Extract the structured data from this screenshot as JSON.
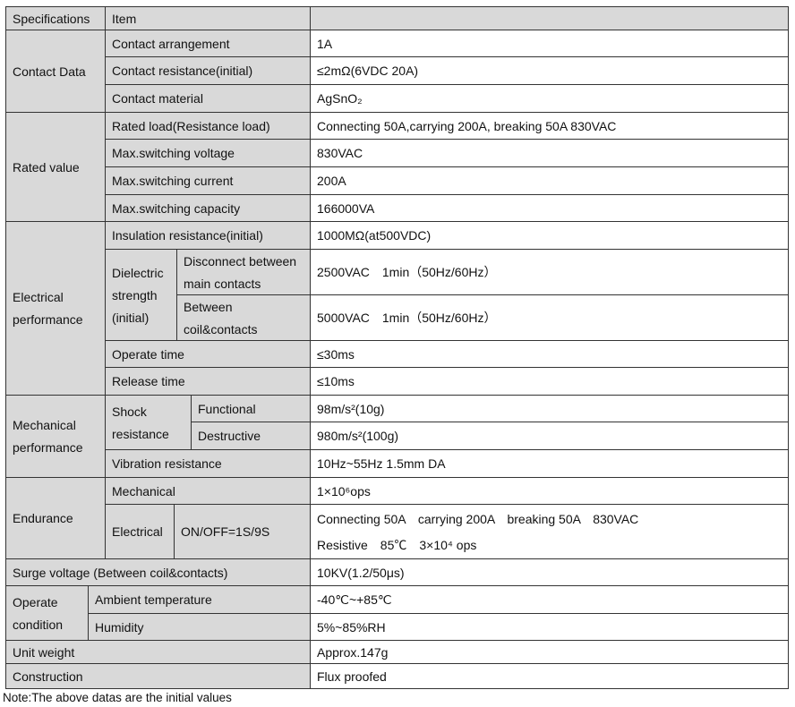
{
  "header": {
    "spec": "Specifications",
    "item": "Item",
    "value": ""
  },
  "contact": {
    "label": "Contact Data",
    "rows": [
      {
        "item": "Contact arrangement",
        "value": "1A"
      },
      {
        "item": "Contact resistance(initial)",
        "value": "≤2mΩ(6VDC 20A)"
      },
      {
        "item": "Contact material",
        "value": "AgSnO₂"
      }
    ]
  },
  "rated": {
    "label": "Rated value",
    "rows": [
      {
        "item": "Rated load(Resistance load)",
        "value": "Connecting 50A,carrying 200A, breaking 50A 830VAC"
      },
      {
        "item": "Max.switching voltage",
        "value": "830VAC"
      },
      {
        "item": "Max.switching current",
        "value": "200A"
      },
      {
        "item": "Max.switching capacity",
        "value": "166000VA"
      }
    ]
  },
  "electrical": {
    "label1": "Electrical",
    "label2": "performance",
    "insulation": {
      "item": "Insulation resistance(initial)",
      "value": "1000MΩ(at500VDC)"
    },
    "dielectric": {
      "l1": "Dielectric",
      "l2": "strength",
      "l3": "(initial)",
      "a1": "Disconnect between",
      "a2": "main contacts",
      "a_value": "2500VAC　1min（50Hz/60Hz）",
      "b1": "Between",
      "b2": "coil&contacts",
      "b_value": "5000VAC　1min（50Hz/60Hz）"
    },
    "operate": {
      "item": "Operate time",
      "value": "≤30ms"
    },
    "release": {
      "item": "Release time",
      "value": "≤10ms"
    }
  },
  "mechanical": {
    "label1": "Mechanical",
    "label2": "performance",
    "shock1": "Shock",
    "shock2": "resistance",
    "functional": {
      "item": "Functional",
      "value": "98m/s²(10g)"
    },
    "destructive": {
      "item": "Destructive",
      "value": "980m/s²(100g)"
    },
    "vibration": {
      "item": "Vibration resistance",
      "value": "10Hz~55Hz 1.5mm DA"
    }
  },
  "endurance": {
    "label": "Endurance",
    "mechanical": {
      "item": "Mechanical",
      "value": "1×10⁶ops"
    },
    "electrical": {
      "item": "Electrical",
      "cond": "ON/OFF=1S/9S",
      "value1": "Connecting 50A　carrying 200A　breaking 50A　830VAC",
      "value2": "Resistive　85℃　3×10⁴ ops"
    }
  },
  "surge": {
    "item": "Surge voltage (Between coil&contacts)",
    "value": "10KV(1.2/50μs)"
  },
  "operate_condition": {
    "label1": "Operate",
    "label2": "condition",
    "ambient": {
      "item": "Ambient temperature",
      "value": "-40℃~+85℃"
    },
    "humidity": {
      "item": "Humidity",
      "value": "5%~85%RH"
    }
  },
  "weight": {
    "item": "Unit weight",
    "value": "Approx.147g"
  },
  "construction": {
    "item": "Construction",
    "value": "Flux proofed"
  },
  "note": "Note:The above datas are the initial values"
}
